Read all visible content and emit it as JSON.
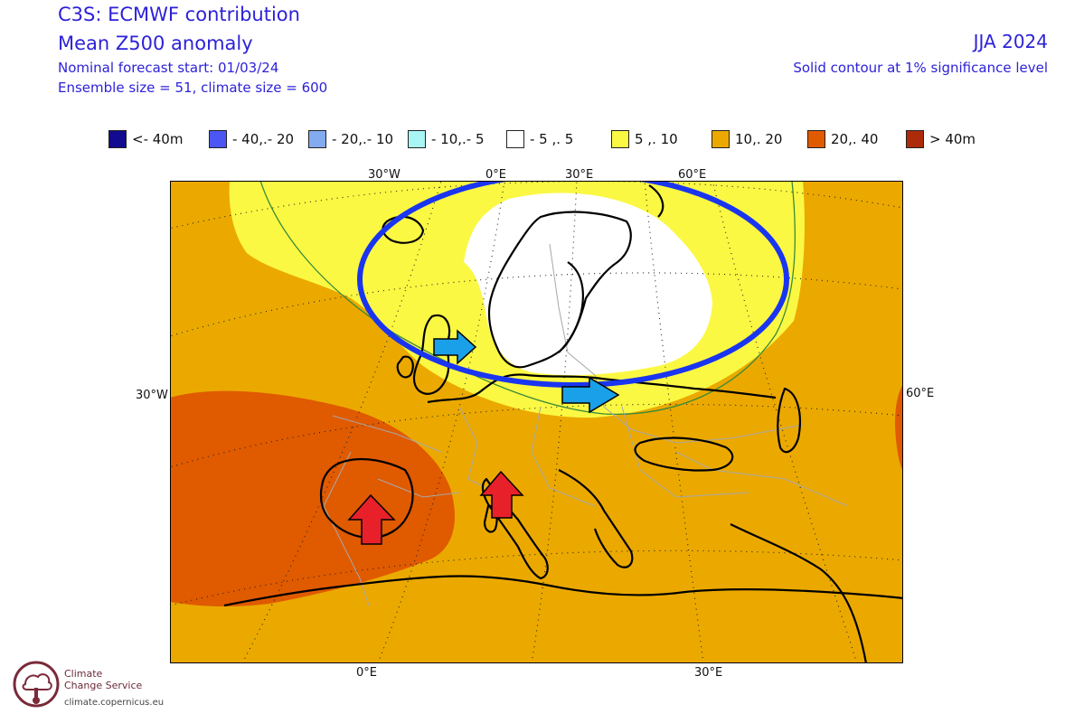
{
  "header": {
    "title": "C3S: ECMWF contribution",
    "subtitle": "Mean Z500 anomaly",
    "forecast_start": "Nominal forecast start: 01/03/24",
    "ensemble": "Ensemble size = 51, climate size = 600",
    "season": "JJA 2024",
    "significance_note": "Solid contour at 1% significance level"
  },
  "legend": {
    "items": [
      {
        "label": "<- 40m",
        "color": "#120a8f"
      },
      {
        "label": "- 40,.- 20",
        "color": "#4a57f2"
      },
      {
        "label": "- 20,.- 10",
        "color": "#84aaf0"
      },
      {
        "label": "- 10,.- 5",
        "color": "#a8f5f5"
      },
      {
        "label": "- 5 ,. 5",
        "color": "#ffffff"
      },
      {
        "label": "5 ,. 10",
        "color": "#fbf843"
      },
      {
        "label": "10,. 20",
        "color": "#eba900"
      },
      {
        "label": "20,. 40",
        "color": "#e05a00"
      },
      {
        "label": "> 40m",
        "color": "#ad2b0b"
      }
    ]
  },
  "map": {
    "top_labels": [
      "30°W",
      "0°E",
      "30°E",
      "60°E"
    ],
    "left_label": "30°W",
    "right_label": "60°E",
    "bottom_labels": [
      "0°E",
      "30°E"
    ]
  },
  "logo": {
    "name_line1": "Climate",
    "name_line2": "Change Service",
    "url": "climate.copernicus.eu"
  }
}
